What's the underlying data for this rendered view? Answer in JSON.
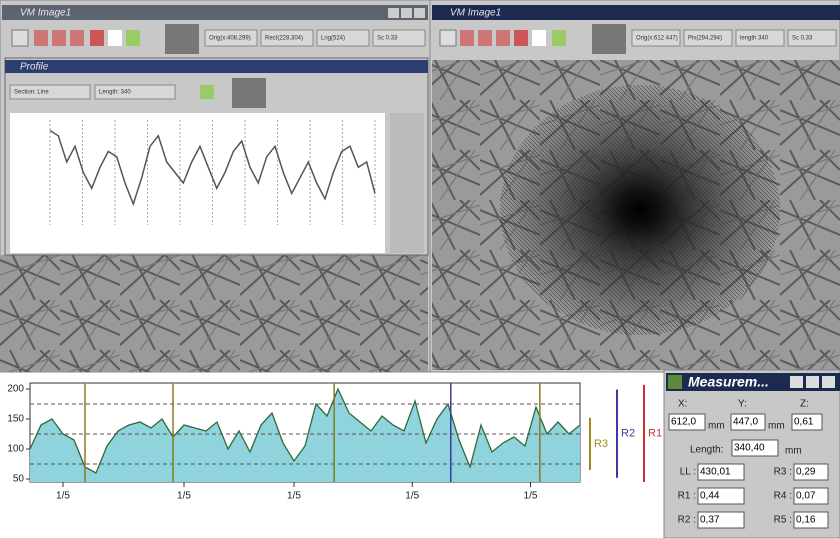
{
  "windows": {
    "left": {
      "title": "VM Image1",
      "fields": [
        "Orig(x:408,299)",
        "Rect(228,304)",
        "Lng(524)",
        "Sc 0.33"
      ]
    },
    "right": {
      "title": "VM Image1",
      "fields": [
        "Orig(x:612 447)",
        "Pix(294,294)",
        "length 340",
        "Sc 0.33"
      ]
    },
    "profile": {
      "title": "Profile",
      "fields": [
        "Section: Line",
        "Length: 340"
      ]
    }
  },
  "profile_chart": {
    "type": "line",
    "ylim": [
      0,
      1
    ],
    "color": "#555",
    "values": [
      0.9,
      0.85,
      0.6,
      0.75,
      0.5,
      0.35,
      0.55,
      0.7,
      0.65,
      0.4,
      0.2,
      0.45,
      0.75,
      0.85,
      0.6,
      0.5,
      0.4,
      0.6,
      0.75,
      0.55,
      0.35,
      0.5,
      0.7,
      0.8,
      0.55,
      0.4,
      0.65,
      0.75,
      0.5,
      0.3,
      0.45,
      0.6,
      0.4,
      0.25,
      0.5,
      0.7,
      0.75,
      0.55,
      0.6,
      0.3
    ]
  },
  "chart_data": {
    "type": "area",
    "color": "#8fd3dc",
    "line_color": "#2f6a3a",
    "x": [
      0,
      2,
      4,
      6,
      8,
      10,
      12,
      14,
      16,
      18,
      20,
      22,
      24,
      26,
      28,
      30,
      32,
      34,
      36,
      38,
      40,
      42,
      44,
      46,
      48,
      50,
      52,
      54,
      56,
      58,
      60,
      62,
      64,
      66,
      68,
      70,
      72,
      74,
      76,
      78,
      80,
      82,
      84,
      86,
      88,
      90,
      92,
      94,
      96,
      98,
      100
    ],
    "values": [
      100,
      140,
      150,
      125,
      115,
      70,
      60,
      105,
      130,
      140,
      145,
      135,
      150,
      120,
      140,
      135,
      130,
      145,
      100,
      130,
      95,
      140,
      160,
      110,
      80,
      105,
      175,
      155,
      200,
      160,
      145,
      130,
      155,
      140,
      130,
      180,
      110,
      150,
      175,
      115,
      70,
      140,
      95,
      110,
      120,
      105,
      170,
      125,
      145,
      125,
      140
    ],
    "xlim": [
      0,
      100
    ],
    "ylim": [
      45,
      210
    ],
    "xticks": [
      {
        "value": 6,
        "label": "1/5"
      },
      {
        "value": 28,
        "label": "1/5"
      },
      {
        "value": 48,
        "label": "1/5"
      },
      {
        "value": 69.5,
        "label": "1/5"
      },
      {
        "value": 91,
        "label": "1/5"
      }
    ],
    "yticks": [
      50,
      100,
      150,
      200
    ],
    "grid_lines": [
      75,
      125,
      175
    ],
    "markers": [
      {
        "x": 10,
        "color": "#8a7a20"
      },
      {
        "x": 26,
        "color": "#8a7a20"
      },
      {
        "x": 55.3,
        "color": "#8a7a20"
      },
      {
        "x": 76.5,
        "color": "#3a3aa0"
      },
      {
        "x": 92.7,
        "color": "#8a7a20"
      }
    ],
    "range_bars": [
      {
        "name": "R1",
        "color": "#d03030",
        "from": 45,
        "to": 207
      },
      {
        "name": "R2",
        "color": "#3a3aa0",
        "from": 52,
        "to": 199
      },
      {
        "name": "R3",
        "color": "#a08a20",
        "from": 65,
        "to": 152
      }
    ]
  },
  "measurement": {
    "title": "Measurem...",
    "x_label": "X:",
    "y_label": "Y:",
    "z_label": "Z:",
    "x": "612,0",
    "y": "447,0",
    "z": "0,61",
    "unit": "mm",
    "length_label": "Length:",
    "length": "340,40",
    "params": [
      {
        "label": "LL :",
        "value": "430,01"
      },
      {
        "label": "R1 :",
        "value": "0,44"
      },
      {
        "label": "R2 :",
        "value": "0,37"
      },
      {
        "label": "R3 :",
        "value": "0,29"
      },
      {
        "label": "R4 :",
        "value": "0,07"
      },
      {
        "label": "R5 :",
        "value": "0,16"
      }
    ]
  }
}
